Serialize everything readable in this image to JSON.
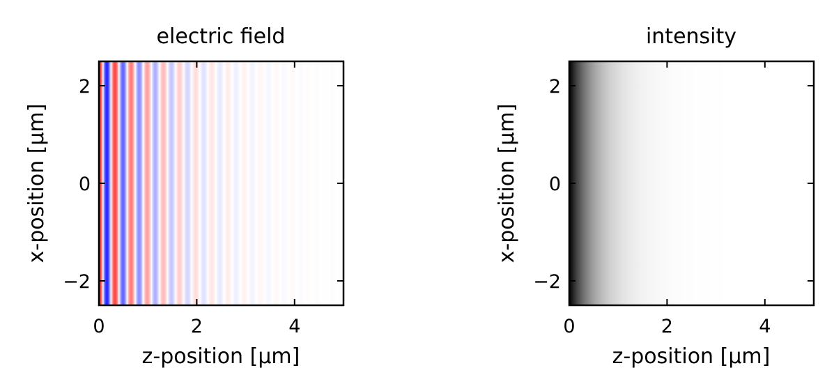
{
  "chart_data": [
    {
      "type": "heatmap",
      "title": "electric field",
      "xlabel": "z-position [µm]",
      "ylabel": "x-position [µm]",
      "xlim": [
        0,
        5
      ],
      "ylim": [
        -2.5,
        2.5
      ],
      "xticks": [
        0,
        2,
        4
      ],
      "yticks": [
        -2,
        0,
        2
      ],
      "xticklabels": [
        "0",
        "2",
        "4"
      ],
      "yticklabels": [
        "−2",
        "0",
        "2"
      ],
      "colormap": "bwr",
      "colors": {
        "negative": "#0000ff",
        "zero": "#ffffff",
        "positive": "#ff0000"
      },
      "grid": false,
      "field": {
        "wavelength": 0.33,
        "decay_length": 1.0,
        "value_at_z0": 1.0
      }
    },
    {
      "type": "heatmap",
      "title": "intensity",
      "xlabel": "z-position [µm]",
      "ylabel": "x-position [µm]",
      "xlim": [
        0,
        5
      ],
      "ylim": [
        -2.5,
        2.5
      ],
      "xticks": [
        0,
        2,
        4
      ],
      "yticks": [
        -2,
        0,
        2
      ],
      "xticklabels": [
        "0",
        "2",
        "4"
      ],
      "yticklabels": [
        "−2",
        "0",
        "2"
      ],
      "colormap": "gray_r",
      "colors": {
        "low": "#ffffff",
        "high": "#000000"
      },
      "grid": false,
      "field": {
        "decay_length": 0.5,
        "value_at_z0": 1.0
      }
    }
  ]
}
